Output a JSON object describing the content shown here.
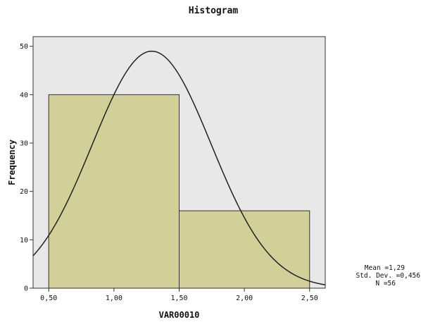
{
  "chart_data": {
    "type": "bar",
    "title": "Histogram",
    "xlabel": "VAR00010",
    "ylabel": "Frequency",
    "bins": [
      {
        "start": 0.5,
        "end": 1.5,
        "count": 40
      },
      {
        "start": 1.5,
        "end": 2.5,
        "count": 16
      }
    ],
    "xlim": [
      0.38,
      2.62
    ],
    "ylim": [
      0,
      52
    ],
    "x_ticks": [
      {
        "value": 0.5,
        "label": "0,50"
      },
      {
        "value": 1.0,
        "label": "1,00"
      },
      {
        "value": 1.5,
        "label": "1,50"
      },
      {
        "value": 2.0,
        "label": "2,00"
      },
      {
        "value": 2.5,
        "label": "2,50"
      }
    ],
    "y_ticks": [
      {
        "value": 0,
        "label": "0"
      },
      {
        "value": 10,
        "label": "10"
      },
      {
        "value": 20,
        "label": "20"
      },
      {
        "value": 30,
        "label": "30"
      },
      {
        "value": 40,
        "label": "40"
      },
      {
        "value": 50,
        "label": "50"
      }
    ],
    "normal_curve": {
      "mean": 1.29,
      "sd": 0.456,
      "n": 56,
      "bin_width": 1.0
    },
    "stats": {
      "mean_line": "Mean =1,29",
      "sd_line": "Std. Dev. =0,456",
      "n_line": "N =56"
    },
    "colors": {
      "plot_background": "#e8e8e8",
      "bar_fill": "#d3cf98",
      "bar_stroke": "#333333",
      "curve": "#222222"
    },
    "grid": false
  }
}
